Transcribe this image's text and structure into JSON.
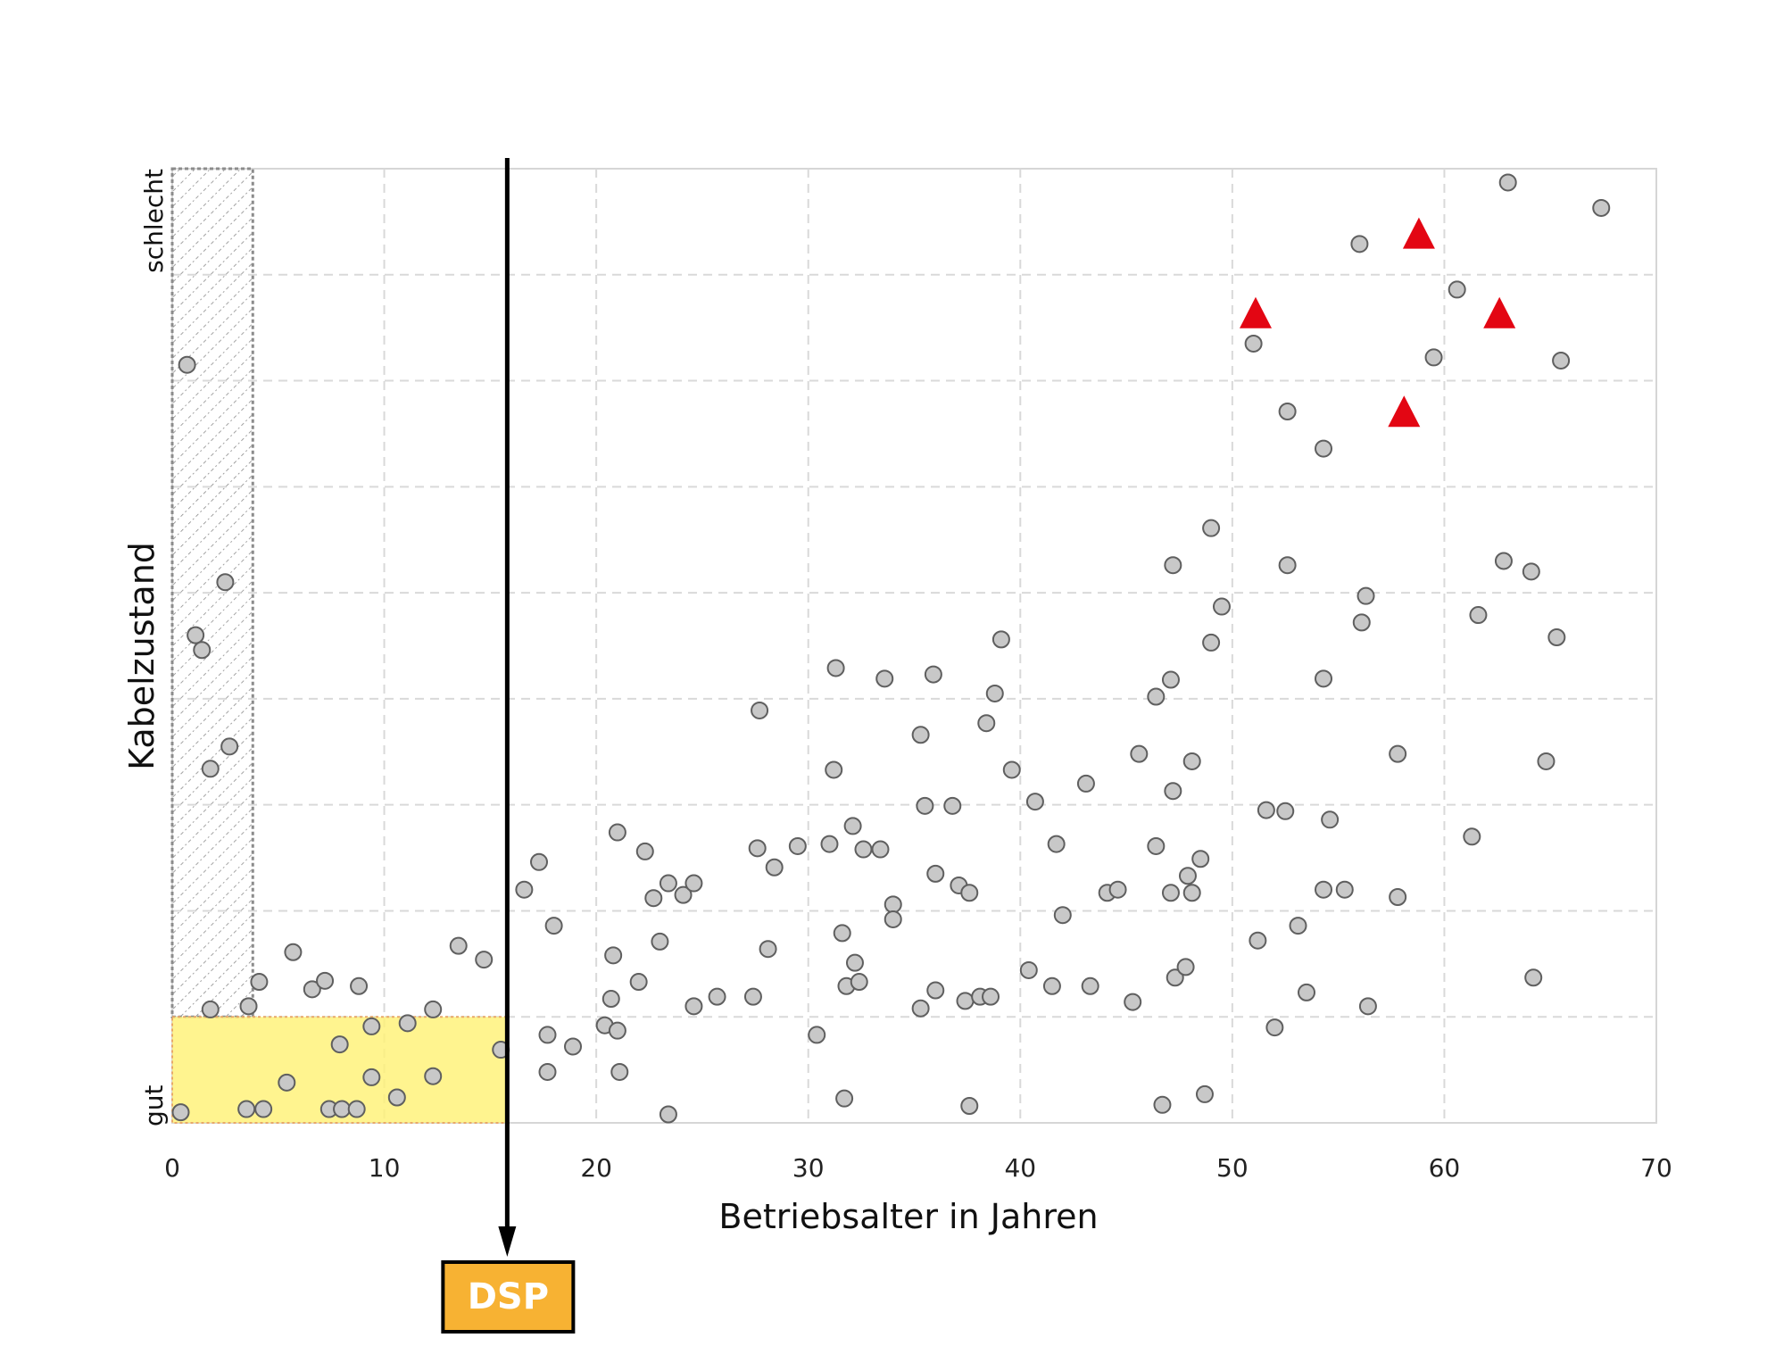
{
  "chart_data": {
    "type": "scatter",
    "xlabel": "Betriebsalter in Jahren",
    "ylabel": "Kabelzustand",
    "xlim": [
      0,
      70
    ],
    "ylim": [
      0,
      9
    ],
    "xticks": [
      0,
      10,
      20,
      30,
      40,
      50,
      60,
      70
    ],
    "y_category_labels": {
      "top": "schlecht",
      "bottom": "gut"
    },
    "grid": true,
    "colors": {
      "point_fill": "#c8c8c8",
      "point_stroke": "#5f5f5f",
      "triangle": "#e30613",
      "highlight": "#fff176",
      "dsp_box": "#f7b233",
      "hatch": "#8c8c8c"
    },
    "marker": {
      "label": "DSP",
      "x": 15.8
    },
    "regions": [
      {
        "name": "hatched",
        "x": [
          0,
          3.8
        ],
        "y": [
          1,
          9
        ]
      },
      {
        "name": "highlight",
        "x": [
          0,
          15.8
        ],
        "y": [
          0,
          1
        ]
      }
    ],
    "series": [
      {
        "marker": "circle",
        "points": [
          [
            0.4,
            0.1
          ],
          [
            3.5,
            0.13
          ],
          [
            4.3,
            0.13
          ],
          [
            7.4,
            0.13
          ],
          [
            8.0,
            0.13
          ],
          [
            8.7,
            0.13
          ],
          [
            5.4,
            0.38
          ],
          [
            9.4,
            0.43
          ],
          [
            10.6,
            0.24
          ],
          [
            12.3,
            0.44
          ],
          [
            7.9,
            0.74
          ],
          [
            9.4,
            0.91
          ],
          [
            11.1,
            0.94
          ],
          [
            15.5,
            0.69
          ],
          [
            1.8,
            1.07
          ],
          [
            3.6,
            1.1
          ],
          [
            4.1,
            1.33
          ],
          [
            5.7,
            1.61
          ],
          [
            6.6,
            1.26
          ],
          [
            7.2,
            1.34
          ],
          [
            8.8,
            1.29
          ],
          [
            12.3,
            1.07
          ],
          [
            13.5,
            1.67
          ],
          [
            14.7,
            1.54
          ],
          [
            0.7,
            7.15
          ],
          [
            2.5,
            5.1
          ],
          [
            1.1,
            4.6
          ],
          [
            1.4,
            4.46
          ],
          [
            2.7,
            3.55
          ],
          [
            1.8,
            3.34
          ],
          [
            17.3,
            2.46
          ],
          [
            16.6,
            2.2
          ],
          [
            18.0,
            1.86
          ],
          [
            17.7,
            0.83
          ],
          [
            17.7,
            0.48
          ],
          [
            18.9,
            0.72
          ],
          [
            20.4,
            0.92
          ],
          [
            20.7,
            1.17
          ],
          [
            20.8,
            1.58
          ],
          [
            21.0,
            0.87
          ],
          [
            21.1,
            0.48
          ],
          [
            21.0,
            2.74
          ],
          [
            22.0,
            1.33
          ],
          [
            22.3,
            2.56
          ],
          [
            22.7,
            2.12
          ],
          [
            23.0,
            1.71
          ],
          [
            23.4,
            2.26
          ],
          [
            24.1,
            2.15
          ],
          [
            24.6,
            2.26
          ],
          [
            24.6,
            1.1
          ],
          [
            25.7,
            1.19
          ],
          [
            23.4,
            0.08
          ],
          [
            27.7,
            3.89
          ],
          [
            27.6,
            2.59
          ],
          [
            28.1,
            1.64
          ],
          [
            27.4,
            1.19
          ],
          [
            28.4,
            2.41
          ],
          [
            29.5,
            2.61
          ],
          [
            30.4,
            0.83
          ],
          [
            31.0,
            2.63
          ],
          [
            31.3,
            4.29
          ],
          [
            31.2,
            3.33
          ],
          [
            31.6,
            1.79
          ],
          [
            31.8,
            1.29
          ],
          [
            31.7,
            0.23
          ],
          [
            32.1,
            2.8
          ],
          [
            32.2,
            1.51
          ],
          [
            32.4,
            1.33
          ],
          [
            32.6,
            2.58
          ],
          [
            33.4,
            2.58
          ],
          [
            33.6,
            4.19
          ],
          [
            34.0,
            2.06
          ],
          [
            34.0,
            1.92
          ],
          [
            35.3,
            3.66
          ],
          [
            35.5,
            2.99
          ],
          [
            35.9,
            4.23
          ],
          [
            36.0,
            2.35
          ],
          [
            36.0,
            1.25
          ],
          [
            35.3,
            1.08
          ],
          [
            36.8,
            2.99
          ],
          [
            37.1,
            2.24
          ],
          [
            37.4,
            1.15
          ],
          [
            37.6,
            2.17
          ],
          [
            37.6,
            0.16
          ],
          [
            38.1,
            1.19
          ],
          [
            38.4,
            3.77
          ],
          [
            38.6,
            1.19
          ],
          [
            38.8,
            4.05
          ],
          [
            39.1,
            4.56
          ],
          [
            39.6,
            3.33
          ],
          [
            40.4,
            1.44
          ],
          [
            40.7,
            3.03
          ],
          [
            41.5,
            1.29
          ],
          [
            41.7,
            2.63
          ],
          [
            42.0,
            1.96
          ],
          [
            43.1,
            3.2
          ],
          [
            43.3,
            1.29
          ],
          [
            44.1,
            2.17
          ],
          [
            44.6,
            2.2
          ],
          [
            45.3,
            1.14
          ],
          [
            45.6,
            3.48
          ],
          [
            46.4,
            4.02
          ],
          [
            46.4,
            2.61
          ],
          [
            46.7,
            0.17
          ],
          [
            47.1,
            4.18
          ],
          [
            47.1,
            2.17
          ],
          [
            47.3,
            1.37
          ],
          [
            47.2,
            3.13
          ],
          [
            47.2,
            5.26
          ],
          [
            47.8,
            1.47
          ],
          [
            47.9,
            2.33
          ],
          [
            48.1,
            2.17
          ],
          [
            48.1,
            3.41
          ],
          [
            48.5,
            2.49
          ],
          [
            48.7,
            0.27
          ],
          [
            49.0,
            4.53
          ],
          [
            49.0,
            5.61
          ],
          [
            49.5,
            4.87
          ],
          [
            51.0,
            7.35
          ],
          [
            51.2,
            1.72
          ],
          [
            51.6,
            2.95
          ],
          [
            52.0,
            0.9
          ],
          [
            52.5,
            2.94
          ],
          [
            52.6,
            5.26
          ],
          [
            52.6,
            6.71
          ],
          [
            53.1,
            1.86
          ],
          [
            53.5,
            1.23
          ],
          [
            54.3,
            6.36
          ],
          [
            54.3,
            4.19
          ],
          [
            54.3,
            2.2
          ],
          [
            54.6,
            2.86
          ],
          [
            55.3,
            2.2
          ],
          [
            56.0,
            8.29
          ],
          [
            56.1,
            4.72
          ],
          [
            56.3,
            4.97
          ],
          [
            56.4,
            1.1
          ],
          [
            57.8,
            3.48
          ],
          [
            57.8,
            2.13
          ],
          [
            59.5,
            7.22
          ],
          [
            60.6,
            7.86
          ],
          [
            61.3,
            2.7
          ],
          [
            61.6,
            4.79
          ],
          [
            62.8,
            5.3
          ],
          [
            63.0,
            8.87
          ],
          [
            64.1,
            5.2
          ],
          [
            64.2,
            1.37
          ],
          [
            64.8,
            3.41
          ],
          [
            65.3,
            4.58
          ],
          [
            65.5,
            7.19
          ],
          [
            67.4,
            8.63
          ]
        ]
      },
      {
        "marker": "triangle",
        "points": [
          [
            58.8,
            8.38
          ],
          [
            51.1,
            7.63
          ],
          [
            62.6,
            7.63
          ],
          [
            58.1,
            6.7
          ]
        ]
      }
    ]
  }
}
